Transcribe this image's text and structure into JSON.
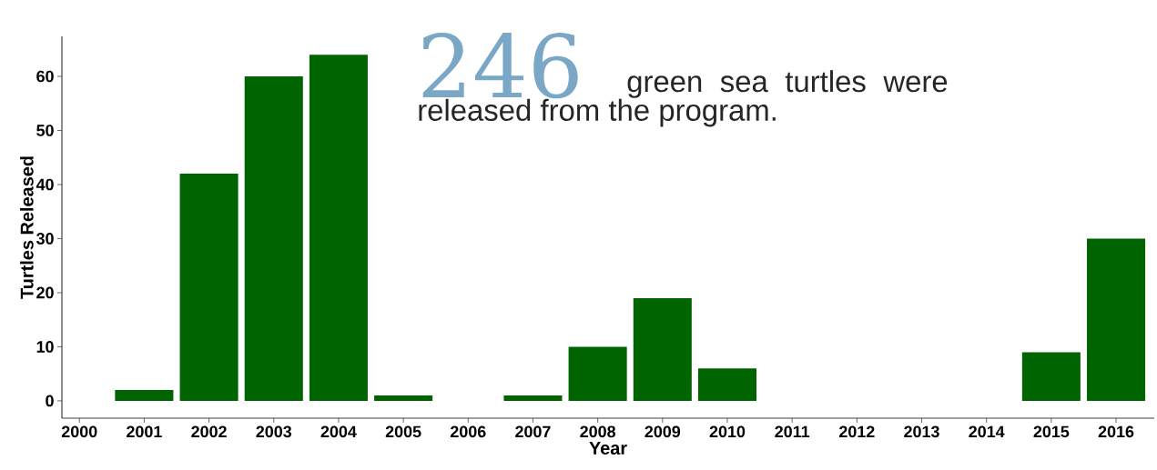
{
  "chart_data": {
    "type": "bar",
    "xlabel": "Year",
    "ylabel": "Turtles Released",
    "annotations": [
      "246",
      "green sea turtles were released from the program."
    ],
    "x": [
      2001,
      2002,
      2003,
      2004,
      2005,
      2007,
      2008,
      2009,
      2010,
      2015,
      2016
    ],
    "values": [
      2,
      42,
      60,
      64,
      1,
      1,
      10,
      19,
      6,
      9,
      30
    ],
    "color": "#006400",
    "xlim": [
      1999.73,
      2016.59
    ],
    "xticks": [
      2000,
      2001,
      2002,
      2003,
      2004,
      2005,
      2006,
      2007,
      2008,
      2009,
      2010,
      2011,
      2012,
      2013,
      2014,
      2015,
      2016
    ],
    "ylim": [
      -3.2,
      67.4
    ],
    "yticks": [
      0,
      10,
      20,
      30,
      40,
      50,
      60
    ],
    "grid": false
  }
}
